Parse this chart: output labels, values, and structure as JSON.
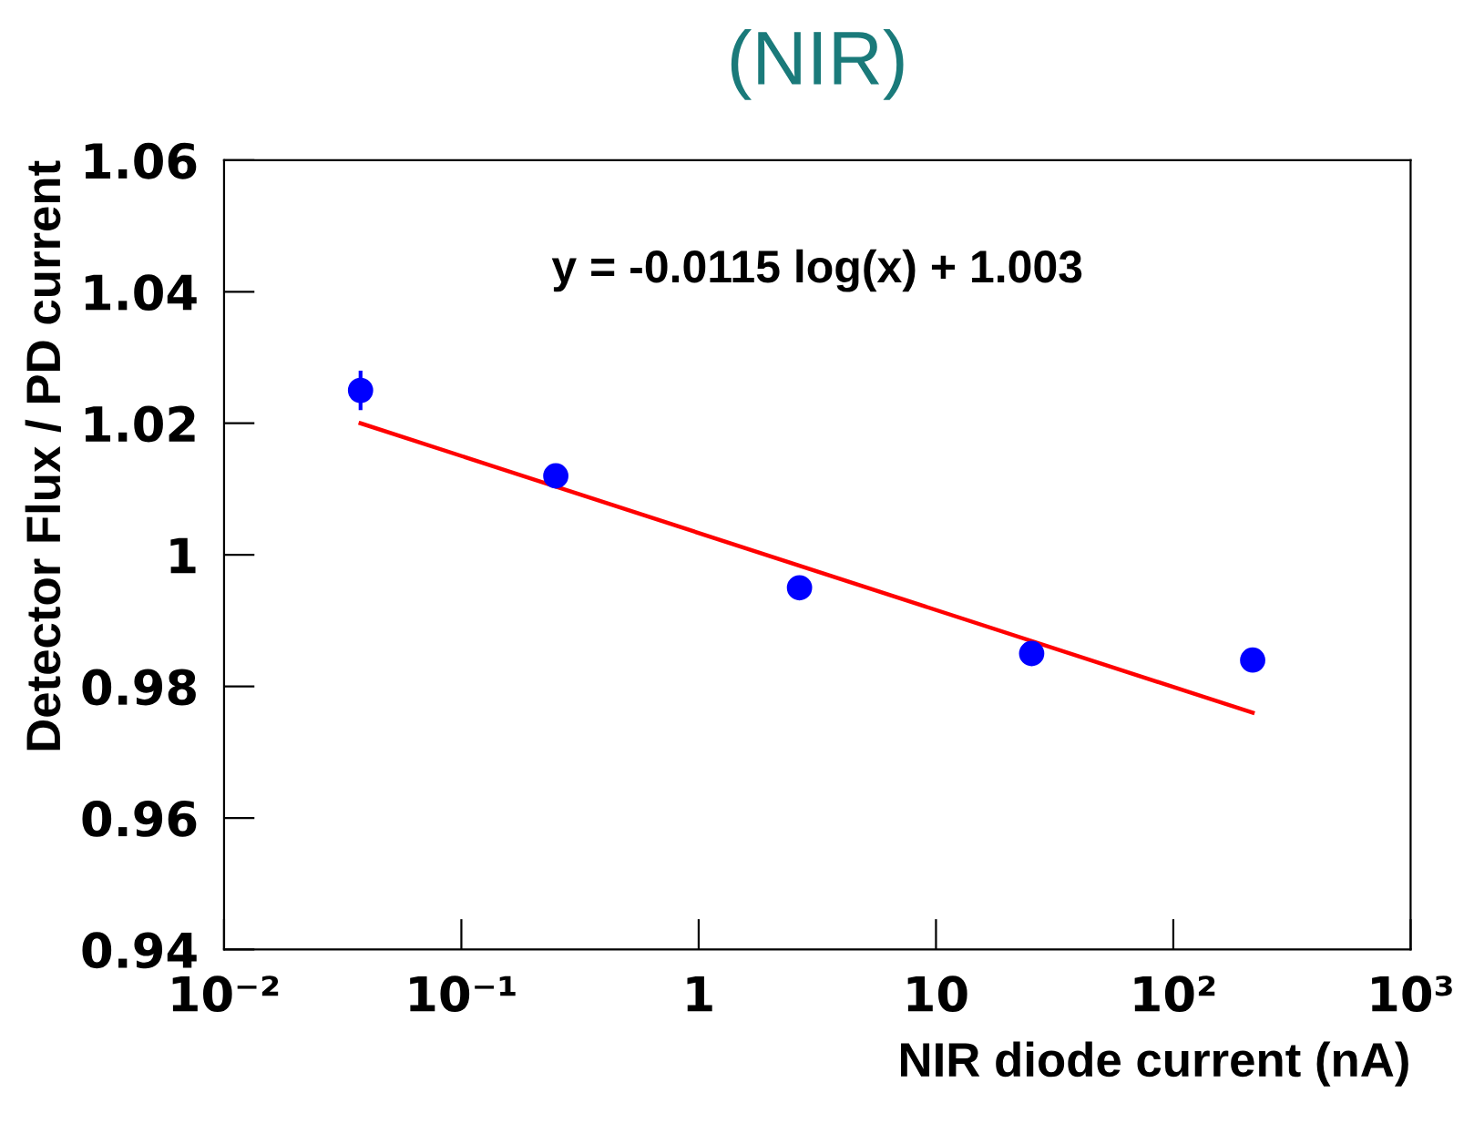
{
  "chart_data": {
    "type": "scatter",
    "title": "(NIR)",
    "xlabel": "NIR diode current (nA)",
    "ylabel": "Detector Flux / PD current",
    "annotations": [
      "y = -0.0115 log(x) + 1.003"
    ],
    "log": "x",
    "grid": false,
    "marker": "circle",
    "xlim": [
      0.01,
      1000
    ],
    "xticks": [
      {
        "value": 0.01,
        "label": "10⁻²"
      },
      {
        "value": 0.1,
        "label": "10⁻¹"
      },
      1,
      10,
      {
        "value": 100,
        "label": "10²"
      },
      {
        "value": 1000,
        "label": "10³"
      }
    ],
    "ylim": [
      0.94,
      1.06
    ],
    "yticks": [
      0.94,
      0.96,
      0.98,
      1,
      1.02,
      1.04,
      1.06
    ],
    "series": [
      {
        "color": "#0000ff",
        "x": [
          0.0376,
          0.25,
          2.66,
          25.3,
          216
        ],
        "values": [
          1.025,
          1.012,
          0.995,
          0.985,
          0.984
        ],
        "errors": [
          0.003,
          null,
          null,
          null,
          null
        ]
      },
      {
        "type": "line",
        "color": "#ff0000",
        "x": [
          0.0376,
          216
        ],
        "values": [
          1.02,
          0.976
        ],
        "line_style": "solid",
        "marker": "none"
      }
    ]
  }
}
